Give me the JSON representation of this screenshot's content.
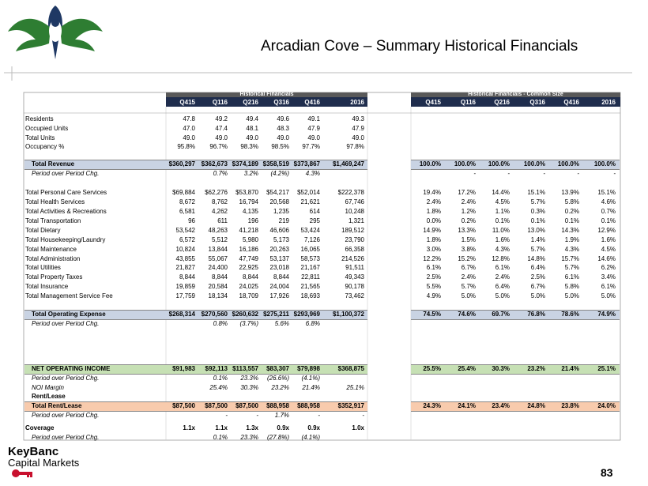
{
  "header": {
    "title": "Arcadian Cove – Summary Historical Financials"
  },
  "table": {
    "groups": [
      "Historical Financials",
      "Historical Financials - Common Size"
    ],
    "columns": [
      "Q415",
      "Q116",
      "Q216",
      "Q316",
      "Q416",
      "2016"
    ],
    "rows": [
      {
        "label": "Residents",
        "values": [
          "47.8",
          "49.2",
          "49.4",
          "49.6",
          "49.1",
          "49.3"
        ]
      },
      {
        "label": "Occupied Units",
        "values": [
          "47.0",
          "47.4",
          "48.1",
          "48.3",
          "47.9",
          "47.9"
        ]
      },
      {
        "label": "Total Units",
        "values": [
          "49.0",
          "49.0",
          "49.0",
          "49.0",
          "49.0",
          "49.0"
        ]
      },
      {
        "label": "Occupancy %",
        "values": [
          "95.8%",
          "96.7%",
          "98.3%",
          "98.5%",
          "97.7%",
          "97.8%"
        ]
      },
      {
        "label": "Total Revenue",
        "values": [
          "$360,297",
          "$362,673",
          "$374,189",
          "$358,519",
          "$373,867",
          "$1,469,247"
        ],
        "common": [
          "100.0%",
          "100.0%",
          "100.0%",
          "100.0%",
          "100.0%",
          "100.0%"
        ]
      },
      {
        "label": "Period over Period Chg.",
        "values": [
          null,
          "0.7%",
          "3.2%",
          "(4.2%)",
          "4.3%",
          null
        ],
        "common": [
          null,
          "-",
          "-",
          "-",
          "-",
          "-"
        ]
      },
      {
        "label": "Total Personal Care Services",
        "values": [
          "$69,884",
          "$62,276",
          "$53,870",
          "$54,217",
          "$52,014",
          "$222,378"
        ],
        "common": [
          "19.4%",
          "17.2%",
          "14.4%",
          "15.1%",
          "13.9%",
          "15.1%"
        ]
      },
      {
        "label": "Total Health Services",
        "values": [
          "8,672",
          "8,762",
          "16,794",
          "20,568",
          "21,621",
          "67,746"
        ],
        "common": [
          "2.4%",
          "2.4%",
          "4.5%",
          "5.7%",
          "5.8%",
          "4.6%"
        ]
      },
      {
        "label": "Total Activities & Recreations",
        "values": [
          "6,581",
          "4,262",
          "4,135",
          "1,235",
          "614",
          "10,248"
        ],
        "common": [
          "1.8%",
          "1.2%",
          "1.1%",
          "0.3%",
          "0.2%",
          "0.7%"
        ]
      },
      {
        "label": "Total Transportation",
        "values": [
          "96",
          "611",
          "196",
          "219",
          "295",
          "1,321"
        ],
        "common": [
          "0.0%",
          "0.2%",
          "0.1%",
          "0.1%",
          "0.1%",
          "0.1%"
        ]
      },
      {
        "label": "Total Dietary",
        "values": [
          "53,542",
          "48,263",
          "41,218",
          "46,606",
          "53,424",
          "189,512"
        ],
        "common": [
          "14.9%",
          "13.3%",
          "11.0%",
          "13.0%",
          "14.3%",
          "12.9%"
        ]
      },
      {
        "label": "Total Housekeeping/Laundry",
        "values": [
          "6,572",
          "5,512",
          "5,980",
          "5,173",
          "7,126",
          "23,790"
        ],
        "common": [
          "1.8%",
          "1.5%",
          "1.6%",
          "1.4%",
          "1.9%",
          "1.6%"
        ]
      },
      {
        "label": "Total Maintenance",
        "values": [
          "10,824",
          "13,844",
          "16,186",
          "20,263",
          "16,065",
          "66,358"
        ],
        "common": [
          "3.0%",
          "3.8%",
          "4.3%",
          "5.7%",
          "4.3%",
          "4.5%"
        ]
      },
      {
        "label": "Total Administration",
        "values": [
          "43,855",
          "55,067",
          "47,749",
          "53,137",
          "58,573",
          "214,526"
        ],
        "common": [
          "12.2%",
          "15.2%",
          "12.8%",
          "14.8%",
          "15.7%",
          "14.6%"
        ]
      },
      {
        "label": "Total Utilities",
        "values": [
          "21,827",
          "24,400",
          "22,925",
          "23,018",
          "21,167",
          "91,511"
        ],
        "common": [
          "6.1%",
          "6.7%",
          "6.1%",
          "6.4%",
          "5.7%",
          "6.2%"
        ]
      },
      {
        "label": "Total Property Taxes",
        "values": [
          "8,844",
          "8,844",
          "8,844",
          "8,844",
          "22,811",
          "49,343"
        ],
        "common": [
          "2.5%",
          "2.4%",
          "2.4%",
          "2.5%",
          "6.1%",
          "3.4%"
        ]
      },
      {
        "label": "Total Insurance",
        "values": [
          "19,859",
          "20,584",
          "24,025",
          "24,004",
          "21,565",
          "90,178"
        ],
        "common": [
          "5.5%",
          "5.7%",
          "6.4%",
          "6.7%",
          "5.8%",
          "6.1%"
        ]
      },
      {
        "label": "Total Management Service Fee",
        "values": [
          "17,759",
          "18,134",
          "18,709",
          "17,926",
          "18,693",
          "73,462"
        ],
        "common": [
          "4.9%",
          "5.0%",
          "5.0%",
          "5.0%",
          "5.0%",
          "5.0%"
        ]
      },
      {
        "label": "Total Operating Expense",
        "values": [
          "$268,314",
          "$270,560",
          "$260,632",
          "$275,211",
          "$293,969",
          "$1,100,372"
        ],
        "common": [
          "74.5%",
          "74.6%",
          "69.7%",
          "76.8%",
          "78.6%",
          "74.9%"
        ]
      },
      {
        "label": "Period over Period Chg.",
        "values": [
          null,
          "0.8%",
          "(3.7%)",
          "5.6%",
          "6.8%",
          null
        ]
      },
      {
        "label": "NET OPERATING INCOME",
        "values": [
          "$91,983",
          "$92,113",
          "$113,557",
          "$83,307",
          "$79,898",
          "$368,875"
        ],
        "common": [
          "25.5%",
          "25.4%",
          "30.3%",
          "23.2%",
          "21.4%",
          "25.1%"
        ]
      },
      {
        "label": "Period over Period Chg.",
        "values": [
          null,
          "0.1%",
          "23.3%",
          "(26.6%)",
          "(4.1%)",
          null
        ]
      },
      {
        "label": "NOI Margin",
        "values": [
          null,
          "25.4%",
          "30.3%",
          "23.2%",
          "21.4%",
          "25.1%"
        ]
      },
      {
        "label": "Rent/Lease"
      },
      {
        "label": "Total Rent/Lease",
        "values": [
          "$87,500",
          "$87,500",
          "$87,500",
          "$88,958",
          "$88,958",
          "$352,917"
        ],
        "common": [
          "24.3%",
          "24.1%",
          "23.4%",
          "24.8%",
          "23.8%",
          "24.0%"
        ]
      },
      {
        "label": "Period over Period Chg.",
        "values": [
          null,
          "-",
          "-",
          "1.7%",
          "-",
          "-"
        ]
      },
      {
        "label": "Coverage",
        "values": [
          "1.1x",
          "1.1x",
          "1.3x",
          "0.9x",
          "0.9x",
          "1.0x"
        ]
      },
      {
        "label": "Period over Period Chg.",
        "values": [
          null,
          "0.1%",
          "23.3%",
          "(27.8%)",
          "(4.1%)",
          null
        ]
      }
    ]
  },
  "footer": {
    "brand": "KeyBanc",
    "subtitle": "Capital Markets",
    "page": "83"
  }
}
